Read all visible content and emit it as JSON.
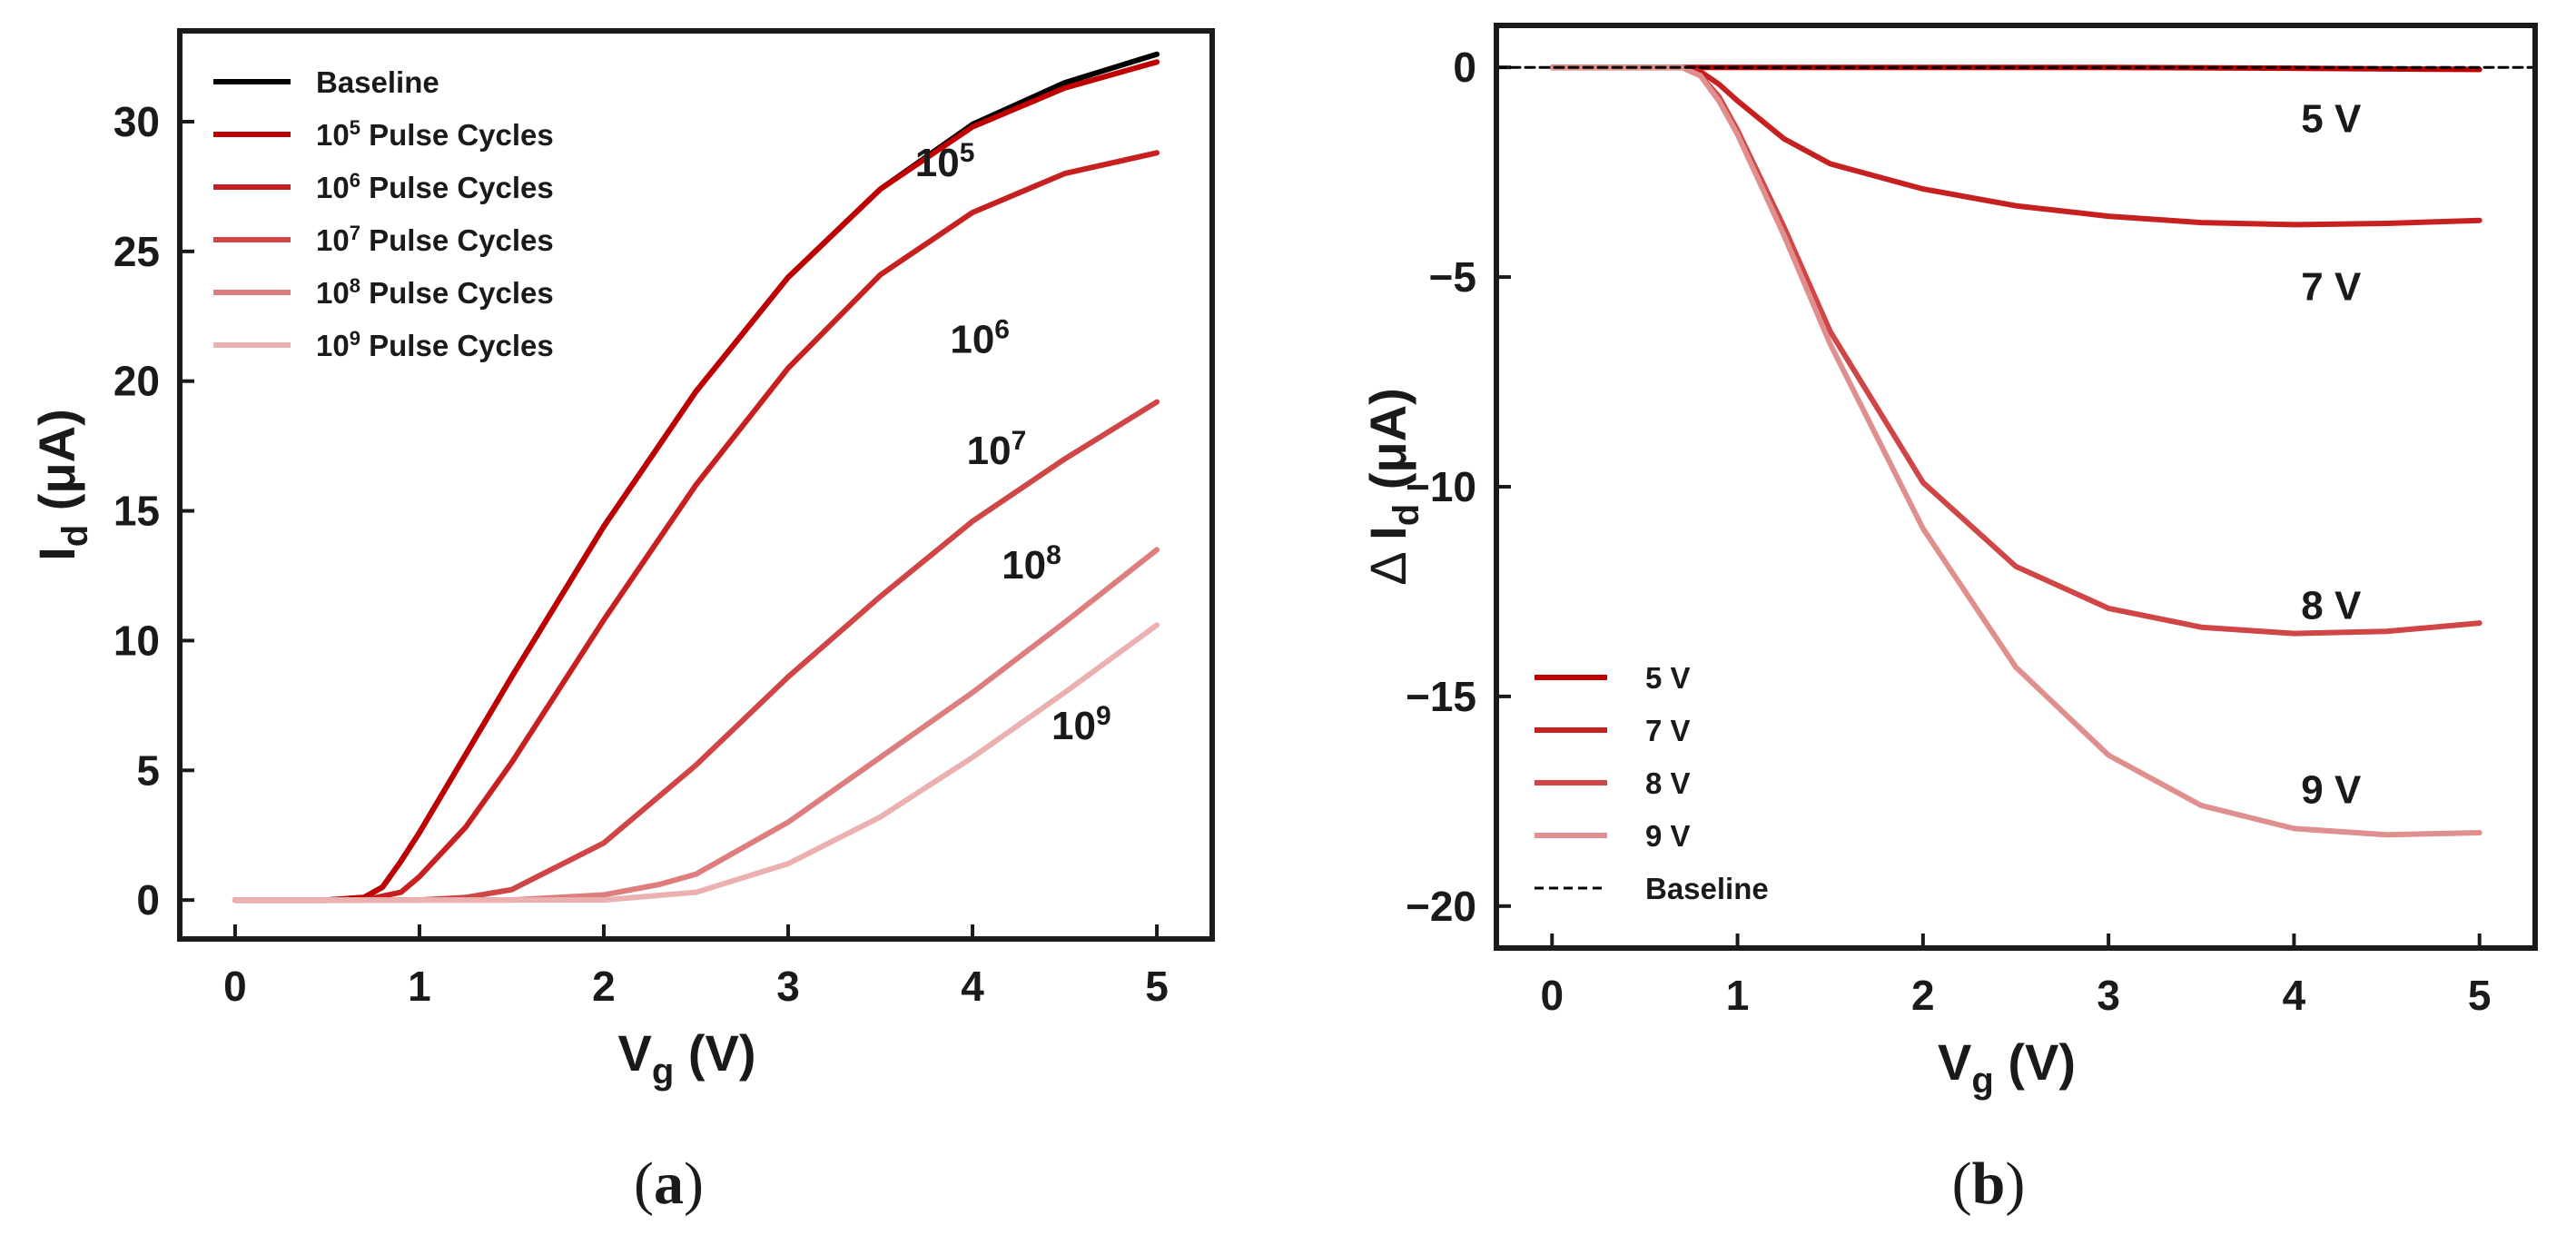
{
  "chart_data": [
    {
      "type": "line",
      "panel_label": "a",
      "xlabel": {
        "main": "V",
        "sub": "g",
        "unit": " (V)"
      },
      "ylabel": {
        "main": "I",
        "sub": "d",
        "unit": " (μA)"
      },
      "xlim": [
        -0.3,
        5.3
      ],
      "ylim": [
        -1.5,
        33.5
      ],
      "xticks": [
        0,
        1,
        2,
        3,
        4,
        5
      ],
      "yticks": [
        0,
        5,
        10,
        15,
        20,
        25,
        30
      ],
      "legend_position": "top-left",
      "series": [
        {
          "name": "Baseline",
          "legend": {
            "base": "Baseline",
            "exp": "",
            "suffix": ""
          },
          "color": "#000000",
          "x": [
            0,
            0.5,
            0.7,
            0.8,
            0.9,
            1.0,
            1.25,
            1.5,
            2.0,
            2.5,
            3.0,
            3.5,
            4.0,
            4.5,
            5.0
          ],
          "y": [
            0,
            0,
            0.1,
            0.5,
            1.5,
            2.6,
            5.6,
            8.6,
            14.4,
            19.6,
            24.0,
            27.4,
            29.9,
            31.5,
            32.6
          ]
        },
        {
          "name": "10^5 Pulse Cycles",
          "legend": {
            "base": "10",
            "exp": "5",
            "suffix": "Pulse Cycles"
          },
          "color": "#c00000",
          "x": [
            0,
            0.5,
            0.7,
            0.8,
            0.9,
            1.0,
            1.25,
            1.5,
            2.0,
            2.5,
            3.0,
            3.5,
            4.0,
            4.5,
            5.0
          ],
          "y": [
            0,
            0,
            0.1,
            0.5,
            1.5,
            2.6,
            5.6,
            8.6,
            14.4,
            19.6,
            24.0,
            27.4,
            29.8,
            31.3,
            32.3
          ]
        },
        {
          "name": "10^6 Pulse Cycles",
          "legend": {
            "base": "10",
            "exp": "6",
            "suffix": "Pulse Cycles"
          },
          "color": "#c62020",
          "x": [
            0,
            0.7,
            0.9,
            1.0,
            1.25,
            1.5,
            2.0,
            2.5,
            3.0,
            3.5,
            4.0,
            4.5,
            5.0
          ],
          "y": [
            0,
            0,
            0.3,
            0.9,
            2.8,
            5.3,
            10.8,
            16.0,
            20.5,
            24.1,
            26.5,
            28.0,
            28.8
          ]
        },
        {
          "name": "10^7 Pulse Cycles",
          "legend": {
            "base": "10",
            "exp": "7",
            "suffix": "Pulse Cycles"
          },
          "color": "#d04545",
          "x": [
            0,
            1.0,
            1.25,
            1.5,
            2.0,
            2.5,
            3.0,
            3.5,
            4.0,
            4.5,
            5.0
          ],
          "y": [
            0,
            0,
            0.1,
            0.4,
            2.2,
            5.2,
            8.6,
            11.7,
            14.6,
            17.0,
            19.2
          ]
        },
        {
          "name": "10^8 Pulse Cycles",
          "legend": {
            "base": "10",
            "exp": "8",
            "suffix": "Pulse Cycles"
          },
          "color": "#dd7d7d",
          "x": [
            0,
            1.5,
            2.0,
            2.3,
            2.5,
            3.0,
            3.5,
            4.0,
            4.5,
            5.0
          ],
          "y": [
            0,
            0,
            0.2,
            0.6,
            1.0,
            3.0,
            5.5,
            8.0,
            10.7,
            13.5
          ]
        },
        {
          "name": "10^9 Pulse Cycles",
          "legend": {
            "base": "10",
            "exp": "9",
            "suffix": "Pulse Cycles"
          },
          "color": "#ebb0b0",
          "x": [
            0,
            2.0,
            2.5,
            3.0,
            3.5,
            4.0,
            4.5,
            5.0
          ],
          "y": [
            0,
            0,
            0.3,
            1.4,
            3.2,
            5.5,
            8.0,
            10.6
          ]
        }
      ],
      "annotations": [
        {
          "base": "10",
          "exp": "5",
          "x": 3.85,
          "y": 27.9
        },
        {
          "base": "10",
          "exp": "6",
          "x": 4.04,
          "y": 21.1
        },
        {
          "base": "10",
          "exp": "7",
          "x": 4.13,
          "y": 16.8
        },
        {
          "base": "10",
          "exp": "8",
          "x": 4.32,
          "y": 12.4
        },
        {
          "base": "10",
          "exp": "9",
          "x": 4.59,
          "y": 6.2
        }
      ]
    },
    {
      "type": "line",
      "panel_label": "b",
      "xlabel": {
        "main": "V",
        "sub": "g",
        "unit": " (V)"
      },
      "ylabel": {
        "prefix": "Δ",
        "main": "I",
        "sub": "d",
        "unit": " (μA)"
      },
      "xlim": [
        -0.3,
        5.3
      ],
      "ylim": [
        -21,
        1
      ],
      "xticks": [
        0,
        1,
        2,
        3,
        4,
        5
      ],
      "yticks": [
        0,
        -5,
        -10,
        -15,
        -20
      ],
      "ytick_labels": [
        "0",
        "−5",
        "−10",
        "−15",
        "−20"
      ],
      "legend_position": "bottom-left",
      "series": [
        {
          "name": "5 V",
          "color": "#c00000",
          "x": [
            0,
            1,
            2,
            3,
            4,
            5
          ],
          "y": [
            0,
            0,
            0,
            0,
            -0.02,
            -0.05
          ]
        },
        {
          "name": "7 V",
          "color": "#c62020",
          "x": [
            0,
            0.7,
            0.8,
            0.9,
            1.0,
            1.25,
            1.5,
            2.0,
            2.5,
            3.0,
            3.5,
            4.0,
            4.5,
            5.0
          ],
          "y": [
            0,
            0,
            -0.1,
            -0.4,
            -0.8,
            -1.7,
            -2.3,
            -2.9,
            -3.3,
            -3.55,
            -3.7,
            -3.75,
            -3.72,
            -3.65
          ]
        },
        {
          "name": "8 V",
          "color": "#d04545",
          "x": [
            0,
            0.7,
            0.8,
            0.9,
            1.0,
            1.25,
            1.5,
            2.0,
            2.5,
            3.0,
            3.5,
            4.0,
            4.5,
            5.0
          ],
          "y": [
            0,
            0,
            -0.2,
            -0.7,
            -1.5,
            -3.8,
            -6.3,
            -9.9,
            -11.9,
            -12.9,
            -13.35,
            -13.5,
            -13.45,
            -13.25
          ]
        },
        {
          "name": "9 V",
          "color": "#e08f8f",
          "x": [
            0,
            0.7,
            0.8,
            0.9,
            1.0,
            1.25,
            1.5,
            2.0,
            2.5,
            3.0,
            3.5,
            4.0,
            4.5,
            5.0
          ],
          "y": [
            0,
            0,
            -0.2,
            -0.8,
            -1.6,
            -4.0,
            -6.6,
            -11.0,
            -14.3,
            -16.4,
            -17.6,
            -18.15,
            -18.3,
            -18.25
          ]
        },
        {
          "name": "Baseline",
          "color": "#000000",
          "dashed": true,
          "x": [
            -0.3,
            5.3
          ],
          "y": [
            0,
            0
          ]
        }
      ],
      "annotations": [
        {
          "text": "5 V",
          "x": 4.2,
          "y": -1.2
        },
        {
          "text": "7 V",
          "x": 4.2,
          "y": -5.2
        },
        {
          "text": "8 V",
          "x": 4.2,
          "y": -12.8
        },
        {
          "text": "9 V",
          "x": 4.2,
          "y": -17.2
        }
      ]
    }
  ]
}
